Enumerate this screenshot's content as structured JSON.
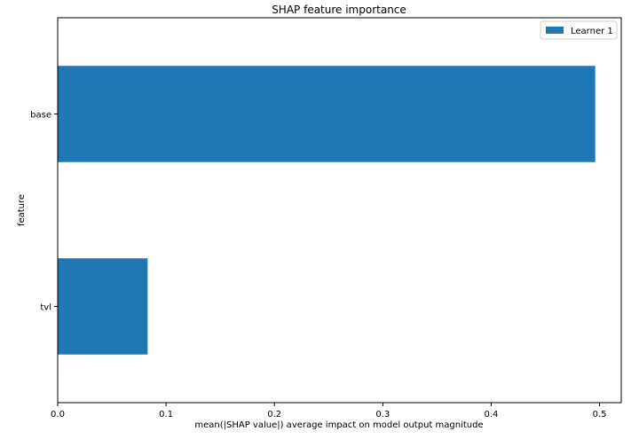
{
  "chart_data": {
    "type": "bar",
    "orientation": "horizontal",
    "title": "SHAP feature importance",
    "xlabel": "mean(|SHAP value|) average impact on model output magnitude",
    "ylabel": "feature",
    "categories": [
      "base",
      "tvl"
    ],
    "series": [
      {
        "name": "Learner 1",
        "values": [
          0.496,
          0.083
        ],
        "color": "#1f77b4"
      }
    ],
    "xlim": [
      0,
      0.52
    ],
    "xticks": [
      0.0,
      0.1,
      0.2,
      0.3,
      0.4,
      0.5
    ],
    "xtick_labels": [
      "0.0",
      "0.1",
      "0.2",
      "0.3",
      "0.4",
      "0.5"
    ],
    "grid": false,
    "legend_position": "top-right"
  }
}
